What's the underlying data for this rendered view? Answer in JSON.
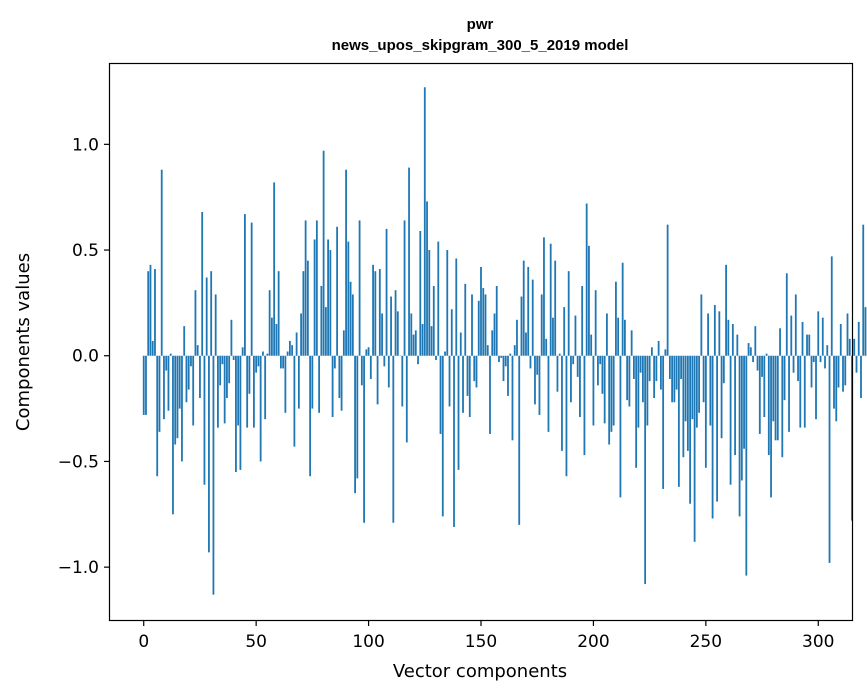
{
  "chart_data": {
    "type": "bar",
    "title_line1": "pwr",
    "title_line2": "news_upos_skipgram_300_5_2019 model",
    "xlabel": "Vector components",
    "ylabel": "Components values",
    "xlim": [
      -15,
      315
    ],
    "ylim": [
      -1.25,
      1.38
    ],
    "xticks": [
      0,
      50,
      100,
      150,
      200,
      250,
      300
    ],
    "xtick_labels": [
      "0",
      "50",
      "100",
      "150",
      "200",
      "250",
      "300"
    ],
    "yticks": [
      -1.0,
      -0.5,
      0.0,
      0.5,
      1.0
    ],
    "ytick_labels": [
      "−1.0",
      "−0.5",
      "0.0",
      "0.5",
      "1.0"
    ],
    "bar_color": "#1f77b4",
    "series": [
      {
        "name": "pwr",
        "values": [
          -0.28,
          -0.28,
          0.4,
          0.43,
          0.07,
          0.41,
          -0.57,
          -0.36,
          0.88,
          -0.3,
          -0.07,
          -0.26,
          0.01,
          -0.75,
          -0.42,
          -0.39,
          -0.25,
          -0.5,
          0.14,
          -0.22,
          -0.16,
          -0.05,
          -0.33,
          0.31,
          0.05,
          -0.2,
          0.68,
          -0.61,
          0.37,
          -0.93,
          0.4,
          -1.13,
          0.29,
          -0.34,
          -0.14,
          -0.04,
          -0.32,
          -0.2,
          -0.13,
          0.17,
          -0.02,
          -0.55,
          -0.33,
          -0.54,
          0.04,
          0.67,
          -0.34,
          -0.18,
          0.63,
          -0.34,
          -0.08,
          -0.05,
          -0.5,
          0.02,
          -0.3,
          0.01,
          0.31,
          0.18,
          0.82,
          0.15,
          0.4,
          -0.06,
          -0.06,
          -0.27,
          0.02,
          0.07,
          0.05,
          -0.43,
          0.11,
          -0.25,
          0.2,
          0.4,
          0.64,
          0.45,
          -0.57,
          -0.25,
          0.55,
          0.64,
          -0.27,
          0.33,
          0.97,
          0.23,
          0.55,
          0.5,
          -0.29,
          -0.06,
          0.61,
          -0.2,
          -0.26,
          0.12,
          0.88,
          0.54,
          0.35,
          0.29,
          -0.65,
          -0.58,
          0.64,
          -0.14,
          -0.79,
          0.03,
          0.04,
          -0.11,
          0.43,
          0.4,
          -0.23,
          0.41,
          0.2,
          -0.05,
          0.6,
          -0.15,
          0.28,
          -0.79,
          0.31,
          0.21,
          0.0,
          -0.24,
          0.64,
          -0.41,
          0.89,
          0.2,
          0.1,
          0.12,
          -0.04,
          0.59,
          0.15,
          1.27,
          0.73,
          0.5,
          0.14,
          0.33,
          -0.02,
          0.54,
          -0.37,
          -0.76,
          0.02,
          0.5,
          -0.24,
          0.22,
          -0.81,
          0.46,
          -0.54,
          0.11,
          -0.27,
          0.34,
          -0.19,
          -0.29,
          0.29,
          -0.12,
          -0.15,
          0.26,
          0.42,
          0.32,
          0.29,
          0.05,
          -0.37,
          0.12,
          0.2,
          0.33,
          -0.03,
          -0.01,
          -0.12,
          -0.05,
          -0.19,
          0.01,
          -0.4,
          0.05,
          0.17,
          -0.8,
          0.28,
          0.45,
          0.11,
          0.42,
          -0.06,
          0.36,
          -0.23,
          -0.09,
          -0.28,
          0.29,
          0.56,
          0.08,
          -0.36,
          0.53,
          0.18,
          0.45,
          -0.17,
          0.01,
          -0.45,
          0.23,
          -0.57,
          0.4,
          -0.22,
          -0.04,
          0.19,
          -0.1,
          -0.29,
          0.33,
          -0.47,
          0.72,
          0.52,
          0.1,
          -0.33,
          0.31,
          -0.14,
          -0.04,
          -0.18,
          -0.32,
          0.2,
          -0.42,
          -0.36,
          -0.33,
          0.35,
          0.18,
          -0.67,
          0.44,
          0.17,
          -0.21,
          -0.24,
          0.12,
          -0.11,
          -0.53,
          -0.34,
          -0.08,
          -0.22,
          -1.08,
          -0.33,
          -0.12,
          0.04,
          -0.2,
          -0.12,
          0.07,
          -0.16,
          -0.63,
          0.03,
          0.62,
          -0.11,
          -0.22,
          -0.22,
          -0.16,
          -0.62,
          -0.11,
          -0.48,
          -0.31,
          -0.45,
          -0.7,
          -0.3,
          -0.88,
          -0.34,
          -0.27,
          0.29,
          -0.22,
          -0.53,
          0.2,
          -0.33,
          -0.77,
          0.24,
          -0.69,
          0.21,
          -0.39,
          -0.13,
          0.43,
          0.17,
          -0.61,
          0.15,
          -0.47,
          0.1,
          -0.76,
          -0.59,
          -0.44,
          -1.04,
          0.06,
          0.04,
          -0.03,
          0.14,
          -0.07,
          -0.37,
          -0.1,
          -0.29,
          0.01,
          -0.47,
          -0.67,
          -0.31,
          -0.4,
          -0.4,
          0.13,
          -0.48,
          -0.21,
          0.39,
          -0.36,
          0.19,
          -0.08,
          0.29,
          -0.12,
          -0.34,
          0.16,
          -0.34,
          0.1,
          0.1,
          -0.15,
          -0.03,
          -0.3,
          0.21,
          -0.03,
          0.18,
          -0.06,
          0.05,
          -0.98,
          0.47,
          -0.25,
          -0.31,
          -0.15,
          0.15,
          -0.17,
          -0.14,
          0.2,
          0.08,
          -0.78,
          0.08,
          -0.08,
          0.16,
          -0.2,
          0.62,
          0.23
        ]
      }
    ]
  }
}
